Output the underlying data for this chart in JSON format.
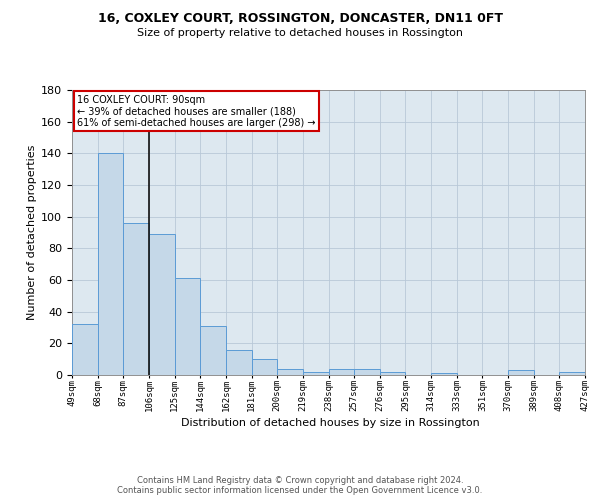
{
  "title": "16, COXLEY COURT, ROSSINGTON, DONCASTER, DN11 0FT",
  "subtitle": "Size of property relative to detached houses in Rossington",
  "xlabel": "Distribution of detached houses by size in Rossington",
  "ylabel": "Number of detached properties",
  "bar_values": [
    32,
    140,
    96,
    89,
    61,
    31,
    16,
    10,
    4,
    2,
    4,
    4,
    2,
    0,
    1,
    0,
    0,
    3,
    0,
    2
  ],
  "bar_labels": [
    "49sqm",
    "68sqm",
    "87sqm",
    "106sqm",
    "125sqm",
    "144sqm",
    "162sqm",
    "181sqm",
    "200sqm",
    "219sqm",
    "238sqm",
    "257sqm",
    "276sqm",
    "295sqm",
    "314sqm",
    "333sqm",
    "351sqm",
    "370sqm",
    "389sqm",
    "408sqm",
    "427sqm"
  ],
  "bar_color": "#c5d8e8",
  "bar_edge_color": "#5b9bd5",
  "vline_x": 2,
  "vline_color": "#111111",
  "annotation_line1": "16 COXLEY COURT: 90sqm",
  "annotation_line2": "← 39% of detached houses are smaller (188)",
  "annotation_line3": "61% of semi-detached houses are larger (298) →",
  "ann_box_facecolor": "#ffffff",
  "ann_box_edgecolor": "#cc0000",
  "ylim": [
    0,
    180
  ],
  "yticks": [
    0,
    20,
    40,
    60,
    80,
    100,
    120,
    140,
    160,
    180
  ],
  "grid_color": "#b8c8d8",
  "plot_bg_color": "#dde8f0",
  "footer_line1": "Contains HM Land Registry data © Crown copyright and database right 2024.",
  "footer_line2": "Contains public sector information licensed under the Open Government Licence v3.0."
}
